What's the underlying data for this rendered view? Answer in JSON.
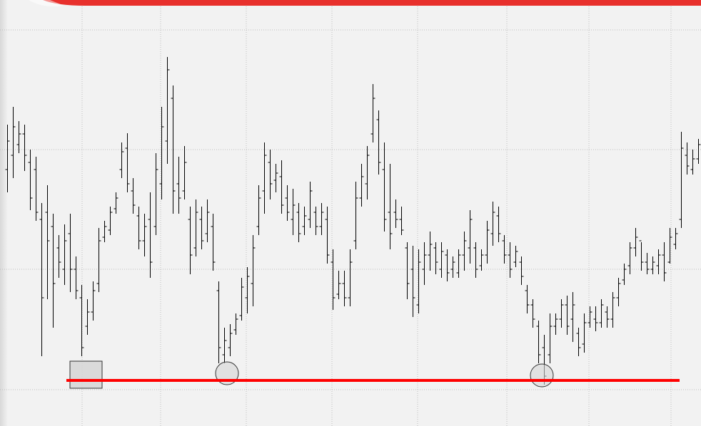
{
  "chart_data": {
    "type": "ohlc",
    "color": "#000000",
    "grid": true,
    "support_color": "#ff0000",
    "xlim": [
      -1.25,
      121.5
    ],
    "xticks": [
      13.125,
      26.875,
      41.875,
      56.875,
      71.875,
      87.5,
      101.875,
      116.25
    ],
    "ylim": [
      0,
      598
    ],
    "yticks": [
      51,
      220,
      388,
      556
    ],
    "support_level": 64,
    "high": [
      423,
      448,
      428,
      423,
      388,
      378,
      313,
      338,
      298,
      268,
      283,
      298,
      238,
      198,
      178,
      203,
      278,
      288,
      308,
      328,
      398,
      411,
      348,
      308,
      298,
      328,
      383,
      448,
      518,
      478,
      378,
      393,
      308,
      318,
      308,
      318,
      298,
      203,
      138,
      143,
      158,
      208,
      223,
      268,
      338,
      398,
      388,
      368,
      373,
      338,
      333,
      313,
      308,
      343,
      308,
      313,
      308,
      248,
      218,
      218,
      248,
      343,
      368,
      393,
      480,
      443,
      398,
      368,
      318,
      308,
      258,
      253,
      248,
      258,
      273,
      258,
      258,
      248,
      238,
      248,
      273,
      303,
      258,
      248,
      288,
      315,
      308,
      268,
      258,
      253,
      238,
      198,
      178,
      148,
      128,
      158,
      158,
      178,
      183,
      188,
      138,
      158,
      168,
      168,
      178,
      168,
      188,
      208,
      228,
      258,
      278,
      258,
      243,
      238,
      248,
      258,
      278,
      278,
      413,
      398,
      388,
      403
    ],
    "low": [
      328,
      348,
      383,
      358,
      303,
      288,
      98,
      178,
      138,
      208,
      198,
      188,
      178,
      98,
      128,
      148,
      188,
      258,
      268,
      298,
      348,
      328,
      298,
      248,
      238,
      208,
      268,
      318,
      368,
      298,
      298,
      318,
      213,
      238,
      248,
      258,
      218,
      88,
      88,
      98,
      128,
      148,
      158,
      168,
      268,
      298,
      318,
      328,
      298,
      288,
      268,
      258,
      268,
      278,
      268,
      268,
      228,
      163,
      178,
      168,
      168,
      248,
      308,
      318,
      398,
      353,
      273,
      248,
      278,
      268,
      178,
      153,
      158,
      198,
      218,
      213,
      208,
      203,
      208,
      208,
      218,
      228,
      208,
      218,
      228,
      253,
      258,
      228,
      208,
      223,
      198,
      158,
      138,
      88,
      58,
      88,
      128,
      138,
      128,
      118,
      98,
      103,
      138,
      133,
      138,
      138,
      138,
      168,
      198,
      213,
      238,
      218,
      213,
      213,
      213,
      203,
      228,
      248,
      278,
      353,
      353,
      368
    ],
    "open": [
      360,
      380,
      395,
      410,
      370,
      360,
      290,
      300,
      280,
      250,
      220,
      270,
      220,
      180,
      140,
      160,
      200,
      265,
      275,
      305,
      360,
      390,
      330,
      295,
      260,
      290,
      280,
      340,
      400,
      460,
      340,
      330,
      290,
      250,
      290,
      270,
      280,
      190,
      100,
      110,
      135,
      155,
      180,
      200,
      280,
      330,
      370,
      345,
      350,
      320,
      290,
      300,
      280,
      290,
      300,
      280,
      290,
      230,
      185,
      200,
      180,
      260,
      320,
      340,
      410,
      430,
      360,
      300,
      300,
      290,
      250,
      220,
      170,
      220,
      240,
      250,
      220,
      240,
      220,
      215,
      240,
      250,
      250,
      225,
      240,
      270,
      295,
      260,
      240,
      230,
      230,
      190,
      170,
      140,
      110,
      100,
      140,
      150,
      170,
      150,
      130,
      115,
      145,
      150,
      145,
      160,
      150,
      180,
      205,
      225,
      250,
      260,
      230,
      220,
      225,
      240,
      230,
      255,
      290,
      380,
      360,
      375
    ],
    "close": [
      400,
      420,
      410,
      380,
      320,
      300,
      180,
      260,
      200,
      230,
      260,
      220,
      190,
      110,
      160,
      190,
      260,
      280,
      300,
      320,
      385,
      340,
      310,
      260,
      280,
      230,
      360,
      420,
      500,
      330,
      320,
      370,
      240,
      300,
      260,
      300,
      230,
      110,
      120,
      130,
      150,
      195,
      210,
      250,
      320,
      380,
      340,
      355,
      310,
      300,
      310,
      270,
      295,
      330,
      280,
      300,
      240,
      180,
      200,
      180,
      230,
      320,
      350,
      380,
      460,
      370,
      290,
      270,
      290,
      275,
      200,
      180,
      230,
      240,
      255,
      230,
      245,
      215,
      230,
      240,
      260,
      290,
      220,
      240,
      275,
      300,
      270,
      240,
      220,
      245,
      210,
      170,
      150,
      100,
      70,
      140,
      150,
      170,
      140,
      170,
      110,
      145,
      160,
      145,
      170,
      150,
      180,
      200,
      220,
      250,
      265,
      230,
      220,
      230,
      240,
      215,
      265,
      270,
      390,
      365,
      375,
      395
    ]
  }
}
